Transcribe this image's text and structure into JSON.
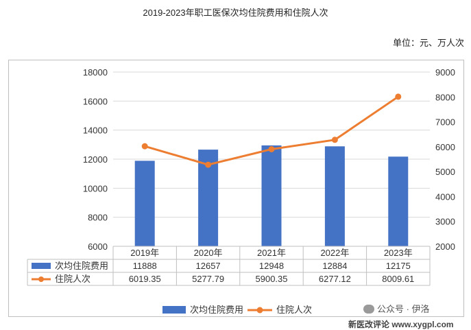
{
  "chart_data": {
    "type": "bar",
    "title": "2019-2023年职工医保次均住院费用和住院人次",
    "unit_note": "单位：元、万人次",
    "categories": [
      "2019年",
      "2020年",
      "2021年",
      "2022年",
      "2023年"
    ],
    "left_axis": {
      "ticks": [
        "18000",
        "16000",
        "14000",
        "12000",
        "10000",
        "8000",
        "6000"
      ],
      "ylim": [
        6000,
        18000
      ]
    },
    "right_axis": {
      "ticks": [
        "9000",
        "8000",
        "7000",
        "6000",
        "5000",
        "4000",
        "3000",
        "2000"
      ],
      "ylim": [
        2000,
        9000
      ]
    },
    "series": [
      {
        "name": "次均住院费用",
        "type": "bar",
        "axis": "left",
        "color": "#4472C4",
        "values": [
          11888,
          12657,
          12948,
          12884,
          12175
        ],
        "labels": [
          "11888",
          "12657",
          "12948",
          "12884",
          "12175"
        ]
      },
      {
        "name": "住院人次",
        "type": "line",
        "axis": "right",
        "color": "#ED7D31",
        "values": [
          6019.35,
          5277.79,
          5900.35,
          6277.12,
          8009.61
        ],
        "labels": [
          "6019.35",
          "5277.79",
          "5900.35",
          "6277.12",
          "8009.61"
        ]
      }
    ],
    "grid": true,
    "legend_position": "bottom"
  },
  "watermark": {
    "text": "公众号 · 伊洛"
  },
  "site_mark": {
    "text": "新医改评论 www.xygpl.com"
  }
}
